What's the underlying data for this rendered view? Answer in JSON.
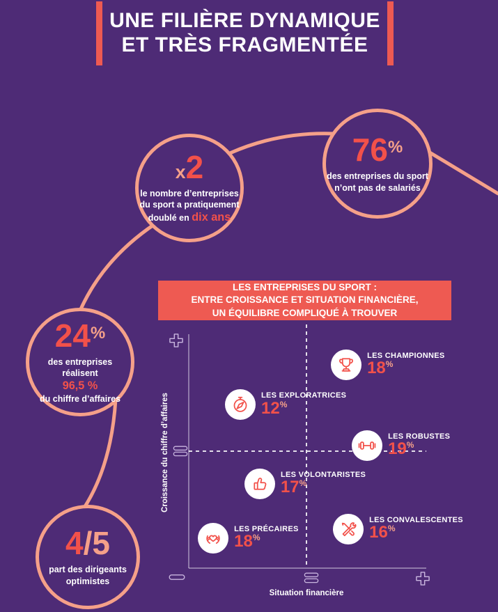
{
  "theme": {
    "background": "#4E2B76",
    "accent_red": "#F2514A",
    "banner_red": "#EE5A52",
    "salmon": "#F5A089",
    "white": "#FFFFFF",
    "axis_line": "rgba(255,255,255,0.5)",
    "axis_symbol": "#C9B6DF",
    "dashed_line": "rgba(255,255,255,0.85)"
  },
  "title": {
    "line1": "UNE FILIÈRE DYNAMIQUE",
    "line2": "ET TRÈS FRAGMENTÉE"
  },
  "bubbles": {
    "multiplier": {
      "prefix": "x",
      "value": "2",
      "text": "le nombre d’entreprises du sport a pratiquement doublé en",
      "highlight": "dix ans"
    },
    "no_employees": {
      "value": "76",
      "unit": "%",
      "text": "des entreprises du sport n’ont pas de salariés"
    },
    "revenue": {
      "value": "24",
      "unit": "%",
      "line1": "des entreprises réalisent",
      "highlight": "96,5 %",
      "line2": "du chiffre d’affaires"
    },
    "optimism": {
      "value": "4",
      "unit": "/5",
      "text": "part des dirigeants optimistes"
    }
  },
  "banner": {
    "line1": "LES ENTREPRISES DU SPORT :",
    "line2": "ENTRE CROISSANCE ET SITUATION FINANCIÈRE,",
    "line3": "UN ÉQUILIBRE COMPLIQUÉ À TROUVER"
  },
  "chart_data": {
    "type": "scatter",
    "title": "LES ENTREPRISES DU SPORT : ENTRE CROISSANCE ET SITUATION FINANCIÈRE, UN ÉQUILIBRE COMPLIQUÉ À TROUVER",
    "xlabel": "Situation financière",
    "ylabel": "Croissance du chiffre d’affaires",
    "x_axis_scale": [
      "−",
      "=",
      "+"
    ],
    "y_axis_scale": [
      "=",
      "+"
    ],
    "grid": "dashed midlines at x=50%, y=50%",
    "legend_position": "labels beside points",
    "points": [
      {
        "label": "LES CHAMPIONNES",
        "value": "18",
        "unit": "%",
        "pct": 18,
        "icon": "trophy-icon",
        "x_pct": 66.3,
        "y_pct": 86.9,
        "quadrant": "high growth / good financial situation"
      },
      {
        "label": "LES EXPLORATRICES",
        "value": "12",
        "unit": "%",
        "pct": 12,
        "icon": "compass-icon",
        "x_pct": 21.7,
        "y_pct": 69.9,
        "quadrant": "high growth / weak financial situation"
      },
      {
        "label": "LES ROBUSTES",
        "value": "19",
        "unit": "%",
        "pct": 19,
        "icon": "dumbbell-icon",
        "x_pct": 75.1,
        "y_pct": 52.4,
        "quadrant": "average growth / good financial situation"
      },
      {
        "label": "LES VOLONTARISTES",
        "value": "17",
        "unit": "%",
        "pct": 17,
        "icon": "thumbs-up-icon",
        "x_pct": 29.9,
        "y_pct": 36.0,
        "quadrant": "low growth / weak financial situation"
      },
      {
        "label": "LES PRÉCAIRES",
        "value": "18",
        "unit": "%",
        "pct": 18,
        "icon": "hands-heart-icon",
        "x_pct": 10.3,
        "y_pct": 12.8,
        "quadrant": "low growth / weak financial situation"
      },
      {
        "label": "LES CONVALESCENTES",
        "value": "16",
        "unit": "%",
        "pct": 16,
        "icon": "tools-icon",
        "x_pct": 67.2,
        "y_pct": 16.7,
        "quadrant": "low growth / good financial situation"
      }
    ]
  }
}
